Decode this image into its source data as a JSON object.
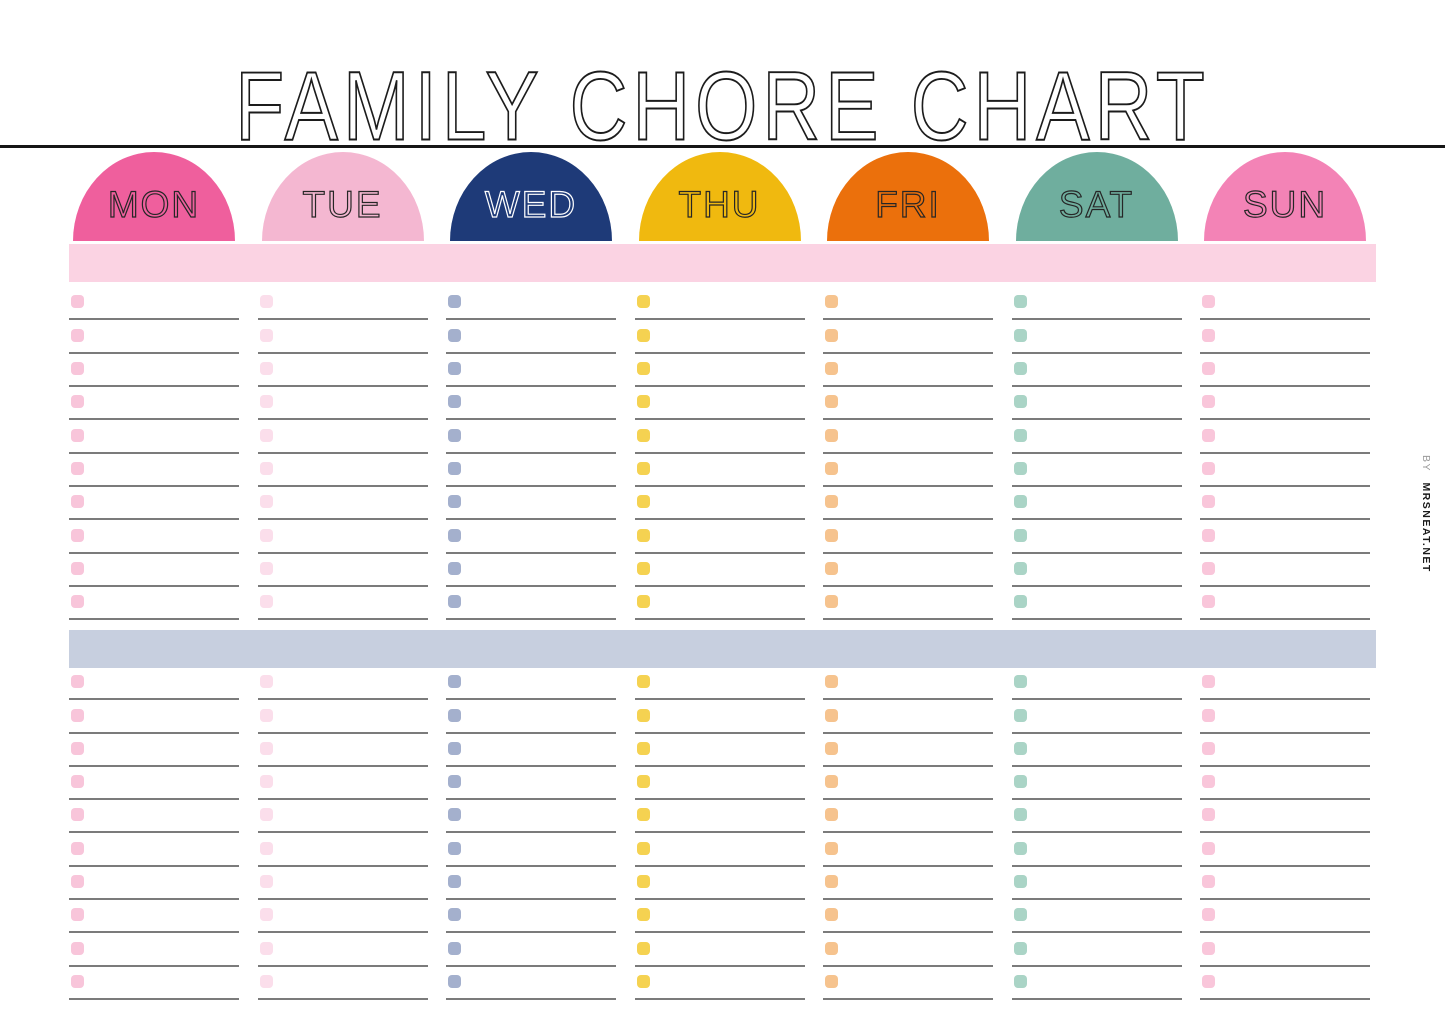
{
  "title": "FAMILY CHORE CHART",
  "credit": {
    "prefix": "BY",
    "name": "MRSNEAT.NET"
  },
  "colors": {
    "title": "#1c1c1c",
    "divider": "#161616",
    "line": "#7b7b7b"
  },
  "days": [
    {
      "label": "MON",
      "color": "#ef5f9d",
      "text_color": "#262626",
      "checkbox_color": "#f8c5da"
    },
    {
      "label": "TUE",
      "color": "#f4b7d1",
      "text_color": "#262626",
      "checkbox_color": "#fbdeeb"
    },
    {
      "label": "WED",
      "color": "#1e3a78",
      "text_color": "#ffffff",
      "checkbox_color": "#a4b0cd"
    },
    {
      "label": "THU",
      "color": "#f0b90f",
      "text_color": "#262626",
      "checkbox_color": "#f5d251"
    },
    {
      "label": "FRI",
      "color": "#eb700c",
      "text_color": "#262626",
      "checkbox_color": "#f6c38e"
    },
    {
      "label": "SAT",
      "color": "#6fae9e",
      "text_color": "#262626",
      "checkbox_color": "#aad4c6"
    },
    {
      "label": "SUN",
      "color": "#f383b6",
      "text_color": "#262626",
      "checkbox_color": "#f9c6da"
    }
  ],
  "sections": [
    {
      "name": "top-section",
      "band_color": "#fbd3e3",
      "rows": 10
    },
    {
      "name": "bottom-section",
      "band_color": "#c7cfdf",
      "rows": 10
    }
  ]
}
